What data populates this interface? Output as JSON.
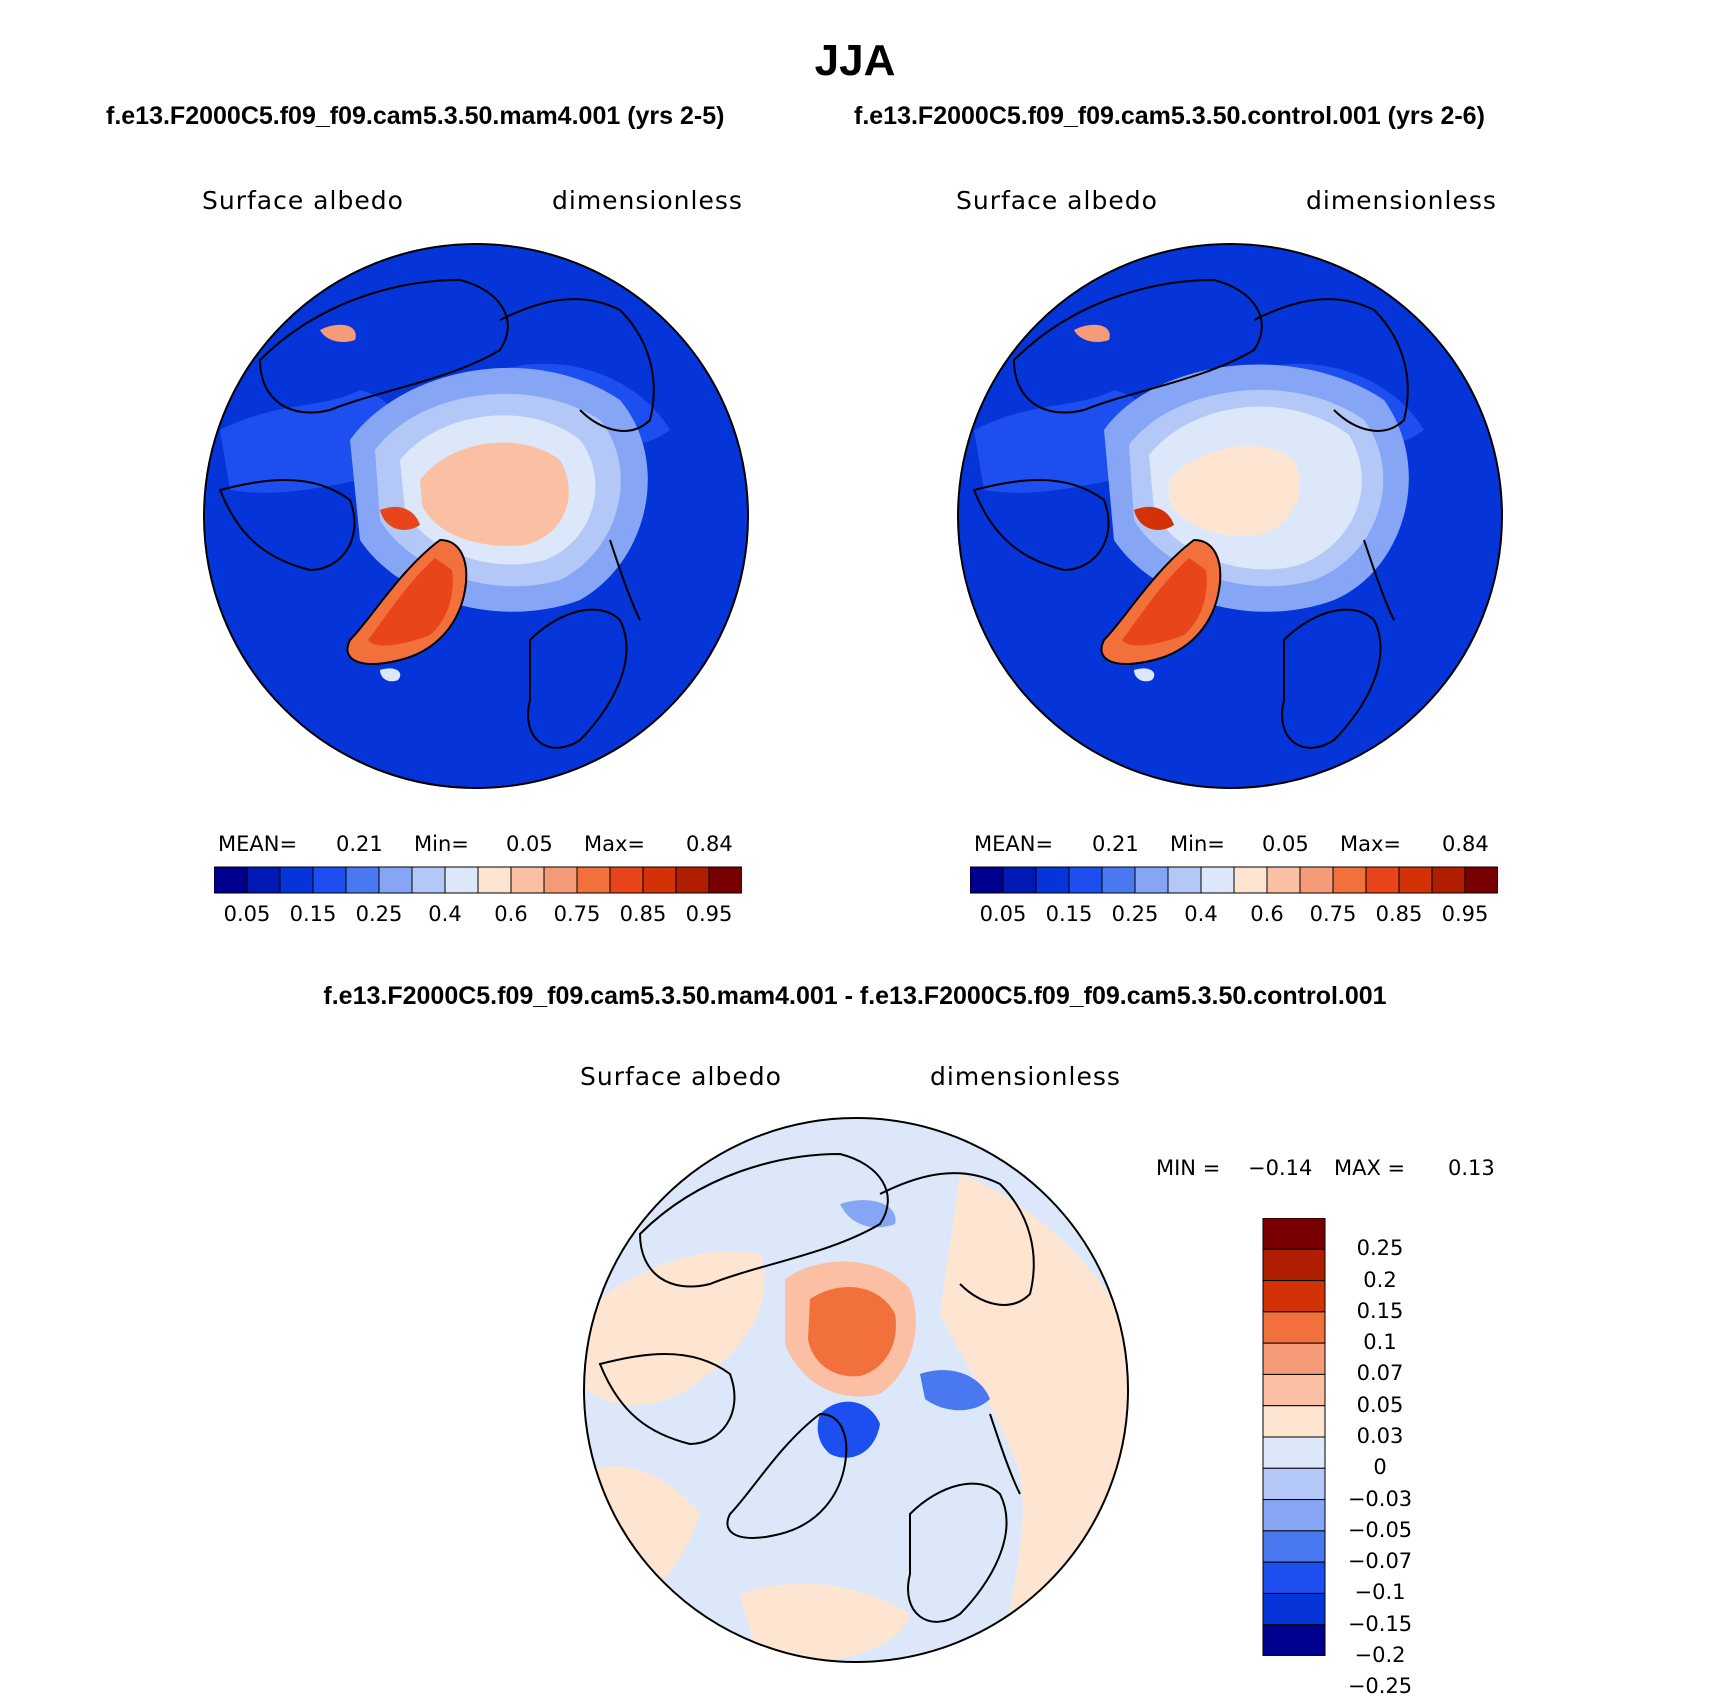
{
  "season": "JJA",
  "panel_left": {
    "case_title": "f.e13.F2000C5.f09_f09.cam5.3.50.mam4.001 (yrs 2-5)",
    "variable": "Surface albedo",
    "units": "dimensionless",
    "mean_label": "MEAN=",
    "mean_value": "0.21",
    "min_label": "Min=",
    "min_value": "0.05",
    "max_label": "Max=",
    "max_value": "0.84"
  },
  "panel_right": {
    "case_title": "f.e13.F2000C5.f09_f09.cam5.3.50.control.001 (yrs 2-6)",
    "variable": "Surface albedo",
    "units": "dimensionless",
    "mean_label": "MEAN=",
    "mean_value": "0.21",
    "min_label": "Min=",
    "min_value": "0.05",
    "max_label": "Max=",
    "max_value": "0.84"
  },
  "panel_diff": {
    "title": "f.e13.F2000C5.f09_f09.cam5.3.50.mam4.001 - f.e13.F2000C5.f09_f09.cam5.3.50.control.001",
    "variable": "Surface albedo",
    "units": "dimensionless",
    "min_label": "MIN =",
    "min_value": "−0.14",
    "max_label": "MAX =",
    "max_value": "0.13"
  },
  "colorbar_abs": {
    "colors": [
      "#000090",
      "#0019b4",
      "#0535d8",
      "#1c4ef0",
      "#4a78f0",
      "#86a6f5",
      "#b4c8f8",
      "#dce8fa",
      "#fde5d2",
      "#fbc0a4",
      "#f69b78",
      "#f2703c",
      "#e8451a",
      "#d23206",
      "#b01e02",
      "#780000"
    ],
    "labels": [
      "0.05",
      "0.15",
      "0.25",
      "0.4",
      "0.6",
      "0.75",
      "0.85",
      "0.95"
    ]
  },
  "colorbar_diff": {
    "colors": [
      "#780000",
      "#b01e02",
      "#d23206",
      "#f2703c",
      "#f69b78",
      "#fbc0a4",
      "#fde5d2",
      "#dce8fa",
      "#b4c8f8",
      "#86a6f5",
      "#4a78f0",
      "#1c4ef0",
      "#0535d8",
      "#000090"
    ],
    "labels": [
      "0.25",
      "0.2",
      "0.15",
      "0.1",
      "0.07",
      "0.05",
      "0.03",
      "0",
      "−0.03",
      "−0.05",
      "−0.07",
      "−0.1",
      "−0.15",
      "−0.2",
      "−0.25"
    ]
  }
}
